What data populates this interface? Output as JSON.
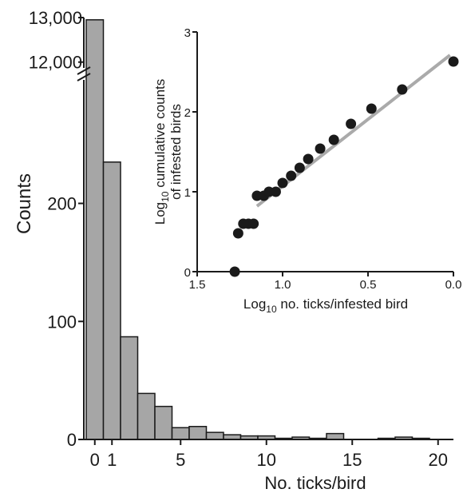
{
  "chart_data": [
    {
      "type": "bar",
      "xlabel": "No. ticks/bird",
      "ylabel": "Counts",
      "x": [
        0,
        1,
        2,
        3,
        4,
        5,
        6,
        7,
        8,
        9,
        10,
        11,
        12,
        13,
        14,
        15,
        16,
        17,
        18,
        19,
        20
      ],
      "values": [
        12950,
        235,
        87,
        39,
        28,
        10,
        11,
        6,
        4,
        3,
        3,
        1,
        2,
        1,
        5,
        0,
        0,
        1,
        2,
        1,
        0
      ],
      "xticks": [
        "0",
        "1",
        "5",
        "10",
        "15",
        "20"
      ],
      "xtick_values": [
        0,
        1,
        5,
        10,
        15,
        20
      ],
      "yticks_lower": [
        "0",
        "100",
        "200"
      ],
      "yticks_lower_values": [
        0,
        100,
        200
      ],
      "ylim_lower": [
        0,
        264
      ],
      "yticks_upper": [
        "12,000",
        "13,000"
      ],
      "yticks_upper_values": [
        12000,
        13000
      ],
      "ylim_upper": [
        11600,
        13000
      ],
      "axis_break": true,
      "bar_color": "#a6a6a6",
      "grid": false
    },
    {
      "type": "scatter",
      "placement": "inset top-right",
      "xlabel": "Log10 no. ticks/infested bird",
      "ylabel_line1": "Log10 cumulative counts",
      "ylabel_line2": "of infested birds",
      "x_reversed": true,
      "xlim": [
        1.5,
        0.0
      ],
      "ylim": [
        0,
        3
      ],
      "xticks": [
        "1.5",
        "1.0",
        "0.5",
        "0.0"
      ],
      "xtick_values": [
        1.5,
        1.0,
        0.5,
        0.0
      ],
      "yticks": [
        "0",
        "1",
        "2",
        "3"
      ],
      "ytick_values": [
        0,
        1,
        2,
        3
      ],
      "points": [
        {
          "x": 1.28,
          "y": 0.0
        },
        {
          "x": 1.26,
          "y": 0.48
        },
        {
          "x": 1.23,
          "y": 0.6
        },
        {
          "x": 1.2,
          "y": 0.6
        },
        {
          "x": 1.17,
          "y": 0.6
        },
        {
          "x": 1.15,
          "y": 0.95
        },
        {
          "x": 1.11,
          "y": 0.95
        },
        {
          "x": 1.08,
          "y": 1.0
        },
        {
          "x": 1.04,
          "y": 1.0
        },
        {
          "x": 1.0,
          "y": 1.11
        },
        {
          "x": 0.95,
          "y": 1.2
        },
        {
          "x": 0.9,
          "y": 1.3
        },
        {
          "x": 0.85,
          "y": 1.41
        },
        {
          "x": 0.78,
          "y": 1.54
        },
        {
          "x": 0.7,
          "y": 1.65
        },
        {
          "x": 0.6,
          "y": 1.85
        },
        {
          "x": 0.48,
          "y": 2.04
        },
        {
          "x": 0.3,
          "y": 2.28
        },
        {
          "x": 0.0,
          "y": 2.63
        }
      ],
      "fit_line": {
        "x": [
          1.15,
          0.02
        ],
        "y": [
          0.82,
          2.71
        ]
      },
      "point_color": "#1a1a1a",
      "fit_color": "#aaaaaa",
      "grid": false
    }
  ]
}
